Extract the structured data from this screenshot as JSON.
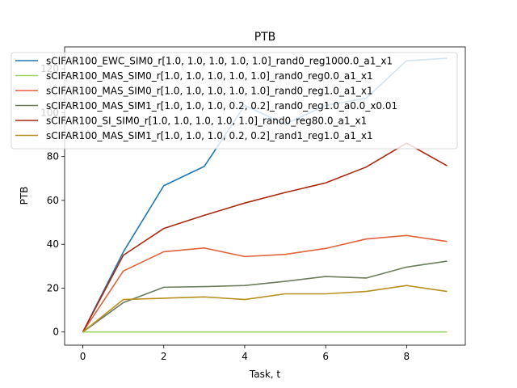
{
  "chart_data": {
    "type": "line",
    "title": "PTB",
    "xlabel": "Task, t",
    "ylabel": "PTB",
    "xlim": [
      -0.45,
      9.45
    ],
    "ylim": [
      -6,
      130
    ],
    "xticks": [
      0,
      2,
      4,
      6,
      8
    ],
    "yticks": [
      0,
      20,
      40,
      60,
      80,
      100,
      120
    ],
    "grid": false,
    "legend_position": "top",
    "x": [
      0,
      1,
      2,
      3,
      4,
      5,
      6,
      7,
      8,
      9
    ],
    "series": [
      {
        "name": "sCIFAR100_EWC_SIM0_r[1.0, 1.0, 1.0, 1.0, 1.0]_rand0_reg1000.0_a1_x1",
        "color": "#1f77b4",
        "values": [
          0,
          36.5,
          66.7,
          75.5,
          103.3,
          94.8,
          103.3,
          106.6,
          123.7,
          124.8
        ]
      },
      {
        "name": "sCIFAR100_MAS_SIM0_r[1.0, 1.0, 1.0, 1.0, 1.0]_rand0_reg0.0_a1_x1",
        "color": "#9ed463",
        "values": [
          0,
          0,
          0,
          0,
          0,
          0,
          0,
          0,
          0,
          0
        ]
      },
      {
        "name": "sCIFAR100_MAS_SIM0_r[1.0, 1.0, 1.0, 1.0, 1.0]_rand0_reg1.0_a1_x1",
        "color": "#e0623a",
        "values": [
          0,
          27.8,
          36.6,
          38.3,
          34.4,
          35.4,
          38.1,
          42.4,
          44.0,
          41.3
        ]
      },
      {
        "name": "sCIFAR100_MAS_SIM1_r[1.0, 1.0, 1.0, 0.2, 0.2]_rand0_reg1.0_a0.0_x0.01",
        "color": "#6b7c5a",
        "values": [
          0,
          13.4,
          20.4,
          20.7,
          21.2,
          23.1,
          25.3,
          24.6,
          29.6,
          32.3
        ]
      },
      {
        "name": "sCIFAR100_SI_SIM0_r[1.0, 1.0, 1.0, 1.0, 1.0]_rand0_reg80.0_a1_x1",
        "color": "#a8290f",
        "values": [
          0,
          35.0,
          47.2,
          53.2,
          58.8,
          63.6,
          68.0,
          75.2,
          86.1,
          75.8
        ]
      },
      {
        "name": "sCIFAR100_MAS_SIM1_r[1.0, 1.0, 1.0, 0.2, 0.2]_rand1_reg1.0_a1_x1",
        "color": "#b8901f",
        "values": [
          0,
          14.8,
          15.4,
          16.0,
          14.8,
          17.4,
          17.4,
          18.5,
          21.2,
          18.5
        ]
      }
    ]
  }
}
